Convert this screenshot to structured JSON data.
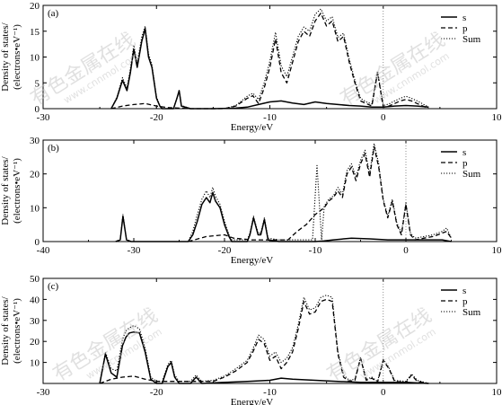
{
  "chart_data": [
    {
      "type": "line",
      "panel_label": "(a)",
      "xlabel": "Energy/eV",
      "ylabel": [
        "Density of states/",
        "(electrons•eV⁻¹)"
      ],
      "xlim": [
        -30,
        10
      ],
      "ylim": [
        0,
        20
      ],
      "xticks": [
        -30,
        -20,
        -10,
        0,
        10
      ],
      "yticks": [
        0,
        5,
        10,
        15,
        20
      ],
      "fermi_level": 0,
      "legend": "top-right",
      "series": [
        {
          "name": "s",
          "style": "solid",
          "x": [
            -24,
            -23.5,
            -23,
            -22.6,
            -22.3,
            -22,
            -21.7,
            -21.3,
            -21,
            -20.7,
            -20.4,
            -20,
            -19.7,
            -19.5,
            -18.5,
            -18.2,
            -18,
            -17.8,
            -17,
            -15,
            -13,
            -12,
            -11,
            -10,
            -9,
            -8,
            -7,
            -6,
            -5,
            -4,
            -3,
            -2,
            -1,
            0,
            1,
            2,
            3,
            4
          ],
          "y": [
            0,
            2,
            5.5,
            3.5,
            7,
            11.5,
            8,
            13,
            15.5,
            10,
            8,
            2,
            0.5,
            0,
            0,
            2,
            3.5,
            0.5,
            0,
            0,
            0.1,
            0.3,
            0.8,
            1.3,
            1.5,
            1.1,
            0.8,
            1.3,
            1,
            0.8,
            0.6,
            0.5,
            0.3,
            0.3,
            0.5,
            0.6,
            0.5,
            0.3
          ]
        },
        {
          "name": "p",
          "style": "dashed",
          "x": [
            -24,
            -23,
            -22,
            -21,
            -20,
            -19,
            -17,
            -14,
            -13,
            -12,
            -11.5,
            -11,
            -10.5,
            -10,
            -9.5,
            -9,
            -8.5,
            -8,
            -7.5,
            -7,
            -6.5,
            -6,
            -5.5,
            -5,
            -4.5,
            -4,
            -3.5,
            -3,
            -2.5,
            -2,
            -1.5,
            -1,
            -0.5,
            0,
            0.5,
            1,
            1.5,
            2,
            2.5,
            3,
            3.5,
            4
          ],
          "y": [
            0,
            0.5,
            0.8,
            1,
            0.5,
            0.2,
            0,
            0,
            0.5,
            2,
            2.5,
            1,
            4,
            8,
            13.5,
            7,
            5,
            9,
            13,
            15,
            14,
            17,
            18.5,
            16,
            17,
            13,
            14,
            9,
            5,
            1.5,
            1,
            0.5,
            7,
            0.3,
            0.5,
            1,
            1.5,
            1.8,
            1.5,
            1,
            0.5,
            0
          ]
        },
        {
          "name": "Sum",
          "style": "dotted",
          "x": [
            -24,
            -23.5,
            -23,
            -22.6,
            -22.3,
            -22,
            -21.7,
            -21.3,
            -21,
            -20.7,
            -20.4,
            -20,
            -19.7,
            -19.5,
            -18.5,
            -18.2,
            -18,
            -17.8,
            -17,
            -14,
            -13,
            -12,
            -11.5,
            -11,
            -10.5,
            -10,
            -9.5,
            -9,
            -8.5,
            -8,
            -7.5,
            -7,
            -6.5,
            -6,
            -5.5,
            -5,
            -4.5,
            -4,
            -3.5,
            -3,
            -2.5,
            -2,
            -1.5,
            -1,
            -0.5,
            0,
            0.5,
            1,
            1.5,
            2,
            2.5,
            3,
            3.5,
            4
          ],
          "y": [
            0,
            2.2,
            6,
            4,
            7.8,
            12.3,
            8.8,
            13.8,
            16,
            10.6,
            8.5,
            2.3,
            0.6,
            0,
            0,
            2.1,
            3.6,
            0.6,
            0,
            0,
            0.6,
            2.4,
            3,
            1.8,
            5,
            9.2,
            14.8,
            8.3,
            6.2,
            10.1,
            14,
            15.8,
            15,
            18.3,
            19.3,
            17,
            17.8,
            13.8,
            14.6,
            9.6,
            5.5,
            2,
            1.3,
            0.9,
            7.3,
            0.6,
            0.9,
            1.5,
            2,
            2.4,
            2,
            1.5,
            0.9,
            0.3
          ]
        }
      ]
    },
    {
      "type": "line",
      "panel_label": "(b)",
      "xlabel": "Energy/eV",
      "ylabel": [
        "Density of states/",
        "(electrons•eV⁻¹)"
      ],
      "xlim": [
        -40,
        10
      ],
      "ylim": [
        0,
        30
      ],
      "xticks": [
        -40,
        -30,
        -20,
        -10,
        0,
        10
      ],
      "yticks": [
        0,
        10,
        20,
        30
      ],
      "fermi_level": 0,
      "legend": "top-right",
      "series": [
        {
          "name": "s",
          "style": "solid",
          "x": [
            -32,
            -31.5,
            -31.2,
            -30.8,
            -30.3,
            -24,
            -23.5,
            -23,
            -22.5,
            -22,
            -21.6,
            -21.3,
            -21,
            -20.5,
            -20,
            -19.5,
            -19.2,
            -17.5,
            -17.2,
            -16.8,
            -16.3,
            -16,
            -15.6,
            -15.2,
            -14,
            -12,
            -10,
            -9,
            -8,
            -6,
            -4,
            -2,
            -1,
            0,
            2,
            4,
            5
          ],
          "y": [
            0,
            0.5,
            7.5,
            0.5,
            0,
            0,
            2,
            6,
            11,
            13,
            11.5,
            14.5,
            12,
            10,
            5,
            1.5,
            0,
            0,
            2,
            7,
            2,
            2,
            6.5,
            0.5,
            0,
            0,
            0,
            0.2,
            0.5,
            1,
            0.8,
            0.5,
            0.5,
            0.5,
            0.5,
            0.5,
            0
          ]
        },
        {
          "name": "p",
          "style": "dashed",
          "x": [
            -24,
            -22,
            -20,
            -19,
            -17,
            -15,
            -13,
            -12,
            -11,
            -10,
            -9,
            -8.5,
            -8,
            -7.5,
            -7,
            -6.5,
            -6,
            -5.5,
            -5,
            -4.5,
            -4,
            -3.5,
            -3,
            -2.5,
            -2,
            -1.5,
            -1,
            -0.5,
            0,
            0.5,
            1,
            2,
            3,
            4,
            4.5,
            5
          ],
          "y": [
            0,
            1.5,
            2,
            1,
            0.5,
            0.5,
            0.5,
            3,
            5,
            8,
            10,
            12,
            13,
            15,
            13,
            20,
            22,
            18,
            23,
            26,
            19,
            28,
            22,
            12,
            7,
            12,
            5,
            2,
            11,
            2,
            0.5,
            1,
            1.5,
            2.5,
            3,
            1
          ]
        },
        {
          "name": "Sum",
          "style": "dotted",
          "x": [
            -32,
            -31.5,
            -31.2,
            -30.8,
            -30.3,
            -24,
            -23.5,
            -23,
            -22.5,
            -22,
            -21.6,
            -21.3,
            -21,
            -20.5,
            -20,
            -19.5,
            -19.2,
            -17.5,
            -17.2,
            -16.8,
            -16.3,
            -16,
            -15.6,
            -15.2,
            -14,
            -10.3,
            -9.8,
            -9.3,
            -9,
            -8.5,
            -8,
            -7.5,
            -7,
            -6.5,
            -6,
            -5.5,
            -5,
            -4.5,
            -4,
            -3.5,
            -3,
            -2.5,
            -2,
            -1.5,
            -1,
            -0.5,
            0,
            0.5,
            1,
            2,
            3,
            4,
            4.5,
            5
          ],
          "y": [
            0,
            0.6,
            8,
            0.6,
            0,
            0,
            3,
            8,
            12.5,
            15,
            13,
            16,
            13.5,
            11,
            6,
            2,
            0.5,
            0.5,
            2.5,
            7.5,
            2.5,
            2.5,
            7,
            1,
            0.5,
            0.5,
            22.5,
            0.5,
            10.5,
            12.5,
            13.5,
            16,
            14,
            21,
            23,
            19,
            24,
            27,
            20,
            29,
            23,
            12.5,
            7.5,
            12.5,
            5.5,
            2.5,
            11.5,
            2.5,
            1,
            1.5,
            2,
            3,
            4,
            1
          ]
        }
      ]
    },
    {
      "type": "line",
      "panel_label": "(c)",
      "xlabel": "Energy/eV",
      "ylabel": [
        "Density of states/",
        "(electrons•eV⁻¹)"
      ],
      "xlim": [
        -30,
        10
      ],
      "ylim": [
        0,
        50
      ],
      "xticks": [
        -30,
        -20,
        -10,
        0,
        10
      ],
      "yticks": [
        10,
        20,
        30,
        40,
        50
      ],
      "fermi_level": 0,
      "legend": "top-right",
      "series": [
        {
          "name": "s",
          "style": "solid",
          "x": [
            -25,
            -24.5,
            -24,
            -23.5,
            -23,
            -22.7,
            -22.4,
            -22,
            -21.5,
            -21,
            -20.5,
            -20,
            -19.5,
            -19,
            -18.7,
            -18.4,
            -18,
            -17,
            -16.5,
            -16,
            -14,
            -12,
            -10,
            -9,
            -8,
            -6,
            -4,
            -2,
            0,
            2,
            4
          ],
          "y": [
            0,
            14,
            5,
            3,
            18,
            22,
            24,
            24.5,
            24,
            15,
            2,
            0,
            0,
            8,
            10,
            3,
            0,
            0,
            3,
            0,
            0.5,
            1,
            1.5,
            2.5,
            2,
            1.5,
            1,
            0.5,
            0.5,
            0.5,
            0
          ]
        },
        {
          "name": "p",
          "style": "dashed",
          "x": [
            -25,
            -24,
            -23,
            -22,
            -21,
            -20,
            -19,
            -17,
            -15,
            -14,
            -13,
            -12,
            -11.5,
            -11,
            -10.5,
            -10,
            -9.5,
            -9,
            -8.5,
            -8,
            -7.5,
            -7,
            -6.5,
            -6,
            -5.5,
            -5,
            -4.5,
            -4,
            -3.5,
            -3,
            -2.5,
            -2,
            -1.5,
            -1,
            -0.5,
            0,
            0.5,
            1,
            2,
            2.5,
            3,
            4
          ],
          "y": [
            0,
            2,
            3,
            3.5,
            2,
            1,
            1,
            1,
            1,
            3,
            6,
            10,
            15,
            21,
            19,
            11,
            13,
            7,
            10,
            15,
            26,
            39,
            33,
            34,
            39,
            40,
            39,
            14,
            3,
            1,
            1.5,
            12,
            1.5,
            2.5,
            0.5,
            11,
            7,
            1,
            0.5,
            4,
            1,
            0
          ]
        },
        {
          "name": "Sum",
          "style": "dotted",
          "x": [
            -25,
            -24.5,
            -24,
            -23.5,
            -23,
            -22.7,
            -22.4,
            -22,
            -21.5,
            -21,
            -20.5,
            -20,
            -19.5,
            -19,
            -18.7,
            -18.4,
            -18,
            -17,
            -16.5,
            -16,
            -15,
            -14,
            -13,
            -12,
            -11.5,
            -11,
            -10.5,
            -10,
            -9.5,
            -9,
            -8.5,
            -8,
            -7.5,
            -7,
            -6.5,
            -6,
            -5.5,
            -5,
            -4.5,
            -4,
            -3.5,
            -3,
            -2.5,
            -2,
            -1.5,
            -1,
            -0.5,
            0,
            0.5,
            1,
            2,
            2.5,
            3,
            4
          ],
          "y": [
            0,
            15,
            7,
            6,
            21,
            25,
            26.5,
            27.5,
            26,
            17,
            3,
            1,
            1,
            9,
            11,
            4,
            1,
            1,
            4,
            1,
            1.5,
            3.5,
            7,
            11,
            16.5,
            23,
            21,
            13,
            15,
            10,
            12,
            17,
            28,
            41,
            35,
            36,
            41,
            42,
            41,
            15,
            4,
            1.5,
            2,
            12.5,
            2,
            3,
            1,
            11.5,
            7.5,
            1.5,
            1,
            4.5,
            1.5,
            0
          ]
        }
      ]
    }
  ],
  "watermark": {
    "cn": "有色金属在线",
    "url": "www.cnnmol.com"
  }
}
